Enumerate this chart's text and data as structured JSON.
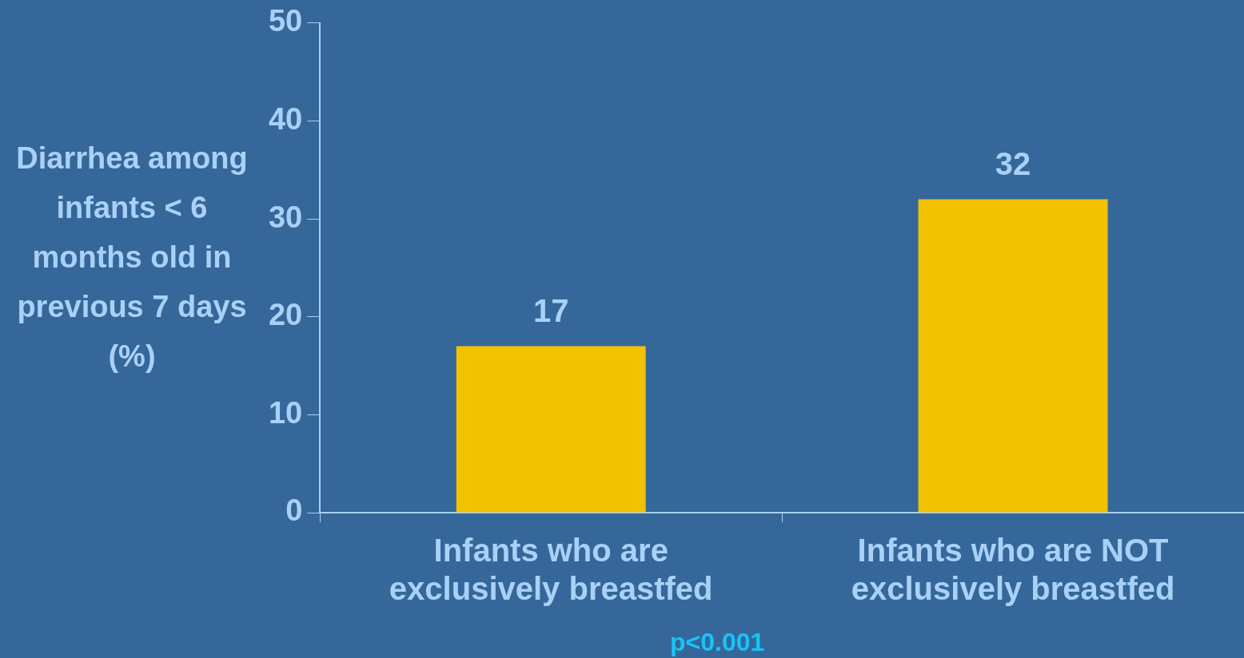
{
  "chart_data": {
    "type": "bar",
    "ylabel": "Diarrhea among infants < 6 months old in previous 7 days (%)",
    "categories": [
      "Infants who are exclusively breastfed",
      "Infants who are NOT exclusively breastfed"
    ],
    "values": [
      17,
      32
    ],
    "color": "#f2c200",
    "ylim": [
      0,
      50
    ],
    "yticks": [
      0,
      10,
      20,
      30,
      40,
      50
    ],
    "grid": false,
    "legend": false,
    "data_labels": true,
    "annotations": [
      "p<0.001"
    ]
  }
}
